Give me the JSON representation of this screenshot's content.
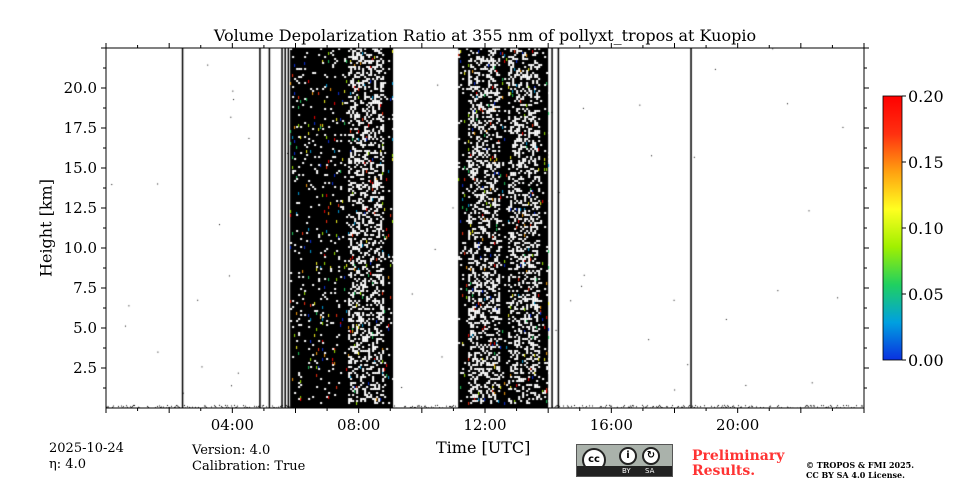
{
  "chart_data": {
    "type": "heatmap",
    "title": "Volume Depolarization Ratio at 355 nm of pollyxt_tropos at Kuopio",
    "xlabel": "Time [UTC]",
    "ylabel": "Height [km]",
    "xlim_hours": [
      0,
      24
    ],
    "ylim_km": [
      0,
      22.5
    ],
    "x_ticks": [
      {
        "h": 4,
        "label": "04:00"
      },
      {
        "h": 8,
        "label": "08:00"
      },
      {
        "h": 12,
        "label": "12:00"
      },
      {
        "h": 16,
        "label": "16:00"
      },
      {
        "h": 20,
        "label": "20:00"
      }
    ],
    "y_ticks": [
      {
        "v": 2.5,
        "label": "2.5"
      },
      {
        "v": 5,
        "label": "5.0"
      },
      {
        "v": 7.5,
        "label": "7.5"
      },
      {
        "v": 10,
        "label": "10.0"
      },
      {
        "v": 12.5,
        "label": "12.5"
      },
      {
        "v": 15,
        "label": "15.0"
      },
      {
        "v": 17.5,
        "label": "17.5"
      },
      {
        "v": 20,
        "label": "20.0"
      }
    ],
    "colorbar": {
      "min": 0,
      "max": 0.2,
      "ticks": [
        {
          "v": 0,
          "label": "0.00"
        },
        {
          "v": 0.05,
          "label": "0.05"
        },
        {
          "v": 0.1,
          "label": "0.10"
        },
        {
          "v": 0.15,
          "label": "0.15"
        },
        {
          "v": 0.2,
          "label": "0.20"
        }
      ],
      "colors": [
        "#0a30e0",
        "#00a0e0",
        "#20d060",
        "#a0f000",
        "#ffff20",
        "#ffa010",
        "#ff3010",
        "#ff0000"
      ]
    },
    "data_regions": [
      {
        "start_h": 5.83,
        "end_h": 9.09,
        "dominant": "dense noisy signal (mostly black/out-of-range, scattered values 0-0.2)"
      },
      {
        "start_h": 11.15,
        "end_h": 14.0,
        "dominant": "dense noisy signal (mostly black/out-of-range, scattered values 0-0.2)"
      }
    ],
    "vertical_lines_h": [
      2.4,
      4.85,
      5.15,
      5.55,
      5.65,
      5.75,
      14.1,
      14.3,
      18.5
    ],
    "near_ground_signal_km": [
      0,
      0.3
    ]
  },
  "footer": {
    "date": "2025-10-24",
    "eta": "η: 4.0",
    "version": "Version: 4.0",
    "calibration": "Calibration: True",
    "preliminary": [
      "Preliminary",
      "Results."
    ],
    "copyright": [
      "© TROPOS & FMI 2025.",
      "CC BY SA 4.0 License."
    ],
    "cc_badge": {
      "logo": "cc",
      "by": "BY",
      "sa": "SA"
    }
  }
}
